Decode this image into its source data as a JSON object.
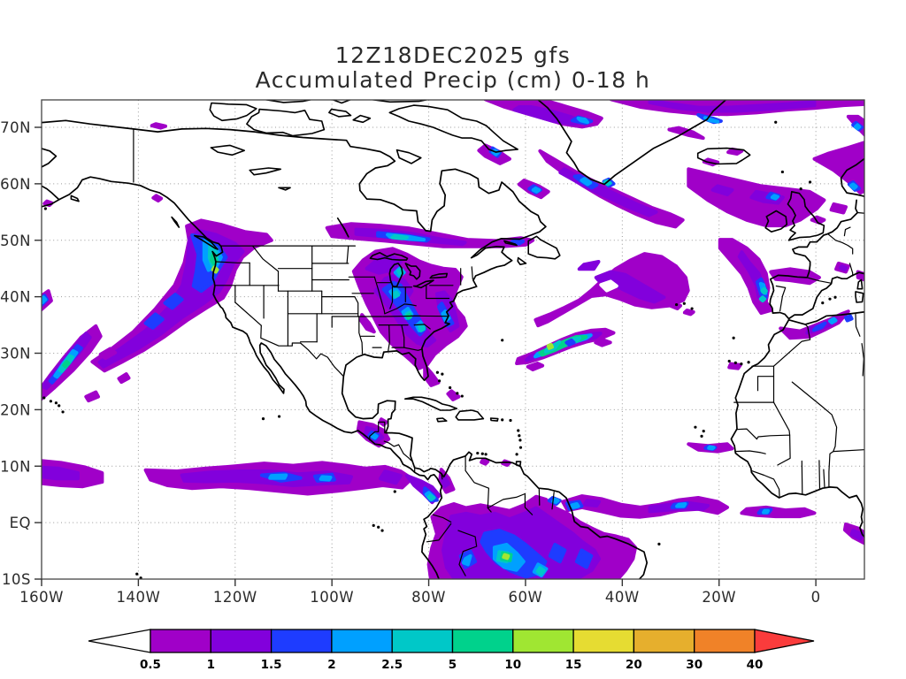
{
  "title": {
    "line1": "12Z18DEC2025 gfs",
    "line2": "Accumulated Precip (cm) 0-18 h"
  },
  "y_axis": {
    "labels": [
      "70N",
      "60N",
      "50N",
      "40N",
      "30N",
      "20N",
      "10N",
      "EQ",
      "10S"
    ],
    "values": [
      70,
      60,
      50,
      40,
      30,
      20,
      10,
      0,
      -10
    ]
  },
  "x_axis": {
    "labels": [
      "160W",
      "140W",
      "120W",
      "100W",
      "80W",
      "60W",
      "40W",
      "20W",
      "0"
    ],
    "values": [
      -160,
      -140,
      -120,
      -100,
      -80,
      -60,
      -40,
      -20,
      0
    ]
  },
  "map": {
    "extent": {
      "lon_min": -160,
      "lon_max": 10.1,
      "lat_min": -10,
      "lat_max": 74.9
    },
    "gridline_lats": [
      70,
      60,
      50,
      40,
      30,
      20,
      10,
      0,
      -10
    ],
    "gridline_lons": [
      -140,
      -120,
      -100,
      -80,
      -60,
      -40,
      -20,
      0
    ]
  },
  "colorbar": {
    "labels": [
      "0.5",
      "1",
      "1.5",
      "2",
      "2.5",
      "5",
      "10",
      "15",
      "20",
      "30",
      "40"
    ],
    "colors": [
      "#a000c8",
      "#8200dc",
      "#1e3cff",
      "#00a0ff",
      "#00c8c8",
      "#00d28c",
      "#a0e632",
      "#e6dc32",
      "#e6af2d",
      "#f08228"
    ],
    "arrow_left_color": "#ffffff",
    "arrow_right_color": "#fa3c3c",
    "outline_color": "#000000"
  }
}
